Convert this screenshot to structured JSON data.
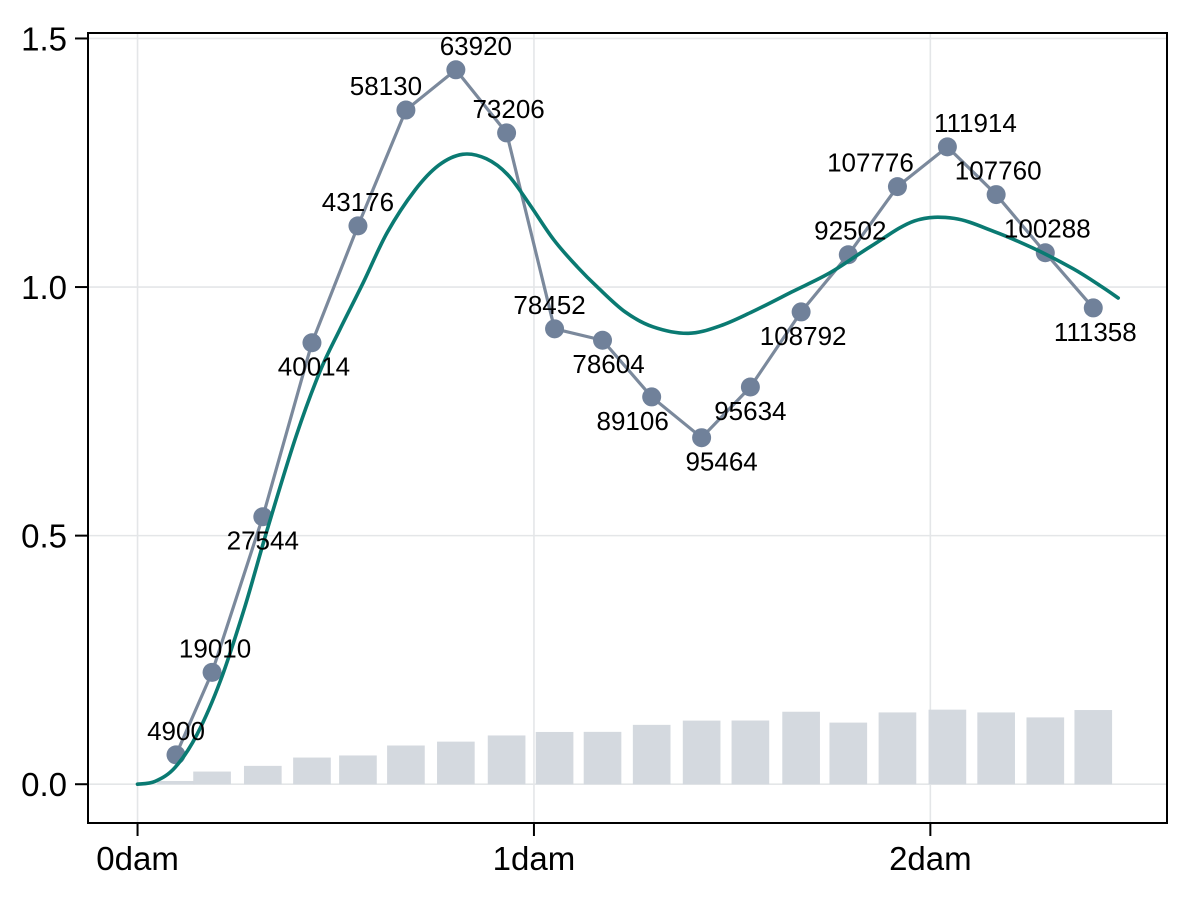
{
  "figure": {
    "background": "#ffffff",
    "title": ""
  },
  "chart_data": {
    "type": "line",
    "title": "",
    "xlabel": "",
    "ylabel": "",
    "x_unit": "dam",
    "grid": true,
    "legend_position": "none",
    "xlim": [
      -0.125,
      2.597
    ],
    "ylim": [
      -0.078,
      1.511
    ],
    "x_ticks": [
      {
        "value": 0,
        "label": "0dam"
      },
      {
        "value": 1,
        "label": "1dam"
      },
      {
        "value": 2,
        "label": "2dam"
      }
    ],
    "y_ticks": [
      {
        "value": 0.0,
        "label": "0.0"
      },
      {
        "value": 0.5,
        "label": "0.5"
      },
      {
        "value": 1.0,
        "label": "1.0"
      },
      {
        "value": 1.5,
        "label": "1.5"
      }
    ],
    "colors": {
      "points_line": "#7b899c",
      "marker": "#70819a",
      "smooth_curve": "#0a7a72",
      "bars": "#d4d9df",
      "grid": "#e4e6e8",
      "frame": "#000000",
      "text": "#000000"
    },
    "series": [
      {
        "name": "labeled_points",
        "type": "scatter_line",
        "points": [
          {
            "x": 0.097,
            "y": 0.059,
            "label": "4900",
            "label_side": "above",
            "label_dx": 0
          },
          {
            "x": 0.188,
            "y": 0.225,
            "label": "19010",
            "label_side": "above",
            "label_dx": 3
          },
          {
            "x": 0.316,
            "y": 0.538,
            "label": "27544",
            "label_side": "below",
            "label_dx": 0
          },
          {
            "x": 0.44,
            "y": 0.888,
            "label": "40014",
            "label_side": "below",
            "label_dx": 2
          },
          {
            "x": 0.556,
            "y": 1.123,
            "label": "43176",
            "label_side": "above",
            "label_dx": 0
          },
          {
            "x": 0.677,
            "y": 1.356,
            "label": "58130",
            "label_side": "above",
            "label_dx": -20
          },
          {
            "x": 0.803,
            "y": 1.437,
            "label": "63920",
            "label_side": "above",
            "label_dx": 20
          },
          {
            "x": 0.931,
            "y": 1.31,
            "label": "73206",
            "label_side": "above",
            "label_dx": 2
          },
          {
            "x": 1.052,
            "y": 0.916,
            "label": "78452",
            "label_side": "above",
            "label_dx": -5
          },
          {
            "x": 1.173,
            "y": 0.893,
            "label": "78604",
            "label_side": "below",
            "label_dx": 6
          },
          {
            "x": 1.297,
            "y": 0.779,
            "label": "89106",
            "label_side": "below",
            "label_dx": -19
          },
          {
            "x": 1.423,
            "y": 0.697,
            "label": "95464",
            "label_side": "below",
            "label_dx": 20
          },
          {
            "x": 1.546,
            "y": 0.799,
            "label": "95634",
            "label_side": "below",
            "label_dx": 0
          },
          {
            "x": 1.674,
            "y": 0.95,
            "label": "108792",
            "label_side": "below",
            "label_dx": 2
          },
          {
            "x": 1.793,
            "y": 1.065,
            "label": "92502",
            "label_side": "above",
            "label_dx": 2
          },
          {
            "x": 1.917,
            "y": 1.202,
            "label": "107776",
            "label_side": "above",
            "label_dx": -27
          },
          {
            "x": 2.043,
            "y": 1.282,
            "label": "111914",
            "label_side": "above",
            "label_dx": 28
          },
          {
            "x": 2.166,
            "y": 1.186,
            "label": "107760",
            "label_side": "above",
            "label_dx": 2
          },
          {
            "x": 2.29,
            "y": 1.069,
            "label": "100288",
            "label_side": "above",
            "label_dx": 2
          },
          {
            "x": 2.411,
            "y": 0.958,
            "label": "111358",
            "label_side": "below",
            "label_dx": 2
          }
        ]
      },
      {
        "name": "smooth_curve",
        "type": "smooth_line",
        "points": [
          [
            0.0,
            0.0
          ],
          [
            0.045,
            0.006
          ],
          [
            0.095,
            0.034
          ],
          [
            0.15,
            0.1
          ],
          [
            0.21,
            0.21
          ],
          [
            0.27,
            0.355
          ],
          [
            0.33,
            0.52
          ],
          [
            0.4,
            0.7
          ],
          [
            0.46,
            0.83
          ],
          [
            0.51,
            0.914
          ],
          [
            0.57,
            1.01
          ],
          [
            0.63,
            1.11
          ],
          [
            0.7,
            1.195
          ],
          [
            0.76,
            1.245
          ],
          [
            0.82,
            1.267
          ],
          [
            0.88,
            1.258
          ],
          [
            0.935,
            1.225
          ],
          [
            0.99,
            1.165
          ],
          [
            1.05,
            1.095
          ],
          [
            1.11,
            1.04
          ],
          [
            1.16,
            1.0
          ],
          [
            1.23,
            0.95
          ],
          [
            1.3,
            0.92
          ],
          [
            1.39,
            0.907
          ],
          [
            1.47,
            0.922
          ],
          [
            1.55,
            0.95
          ],
          [
            1.65,
            0.99
          ],
          [
            1.75,
            1.03
          ],
          [
            1.85,
            1.082
          ],
          [
            1.96,
            1.133
          ],
          [
            2.06,
            1.138
          ],
          [
            2.16,
            1.112
          ],
          [
            2.26,
            1.078
          ],
          [
            2.36,
            1.037
          ],
          [
            2.43,
            1.002
          ],
          [
            2.474,
            0.978
          ]
        ]
      },
      {
        "name": "bars",
        "type": "bar",
        "note": "bar heights are the point label values drawn on a hidden secondary scale",
        "values": [
          4900,
          19010,
          27544,
          40014,
          43176,
          58130,
          63920,
          73206,
          78452,
          78604,
          89106,
          95464,
          95634,
          108792,
          92502,
          107776,
          111914,
          107760,
          100288,
          111358
        ],
        "value_scale": 1.34e-06,
        "bar_width": 0.095
      }
    ]
  }
}
